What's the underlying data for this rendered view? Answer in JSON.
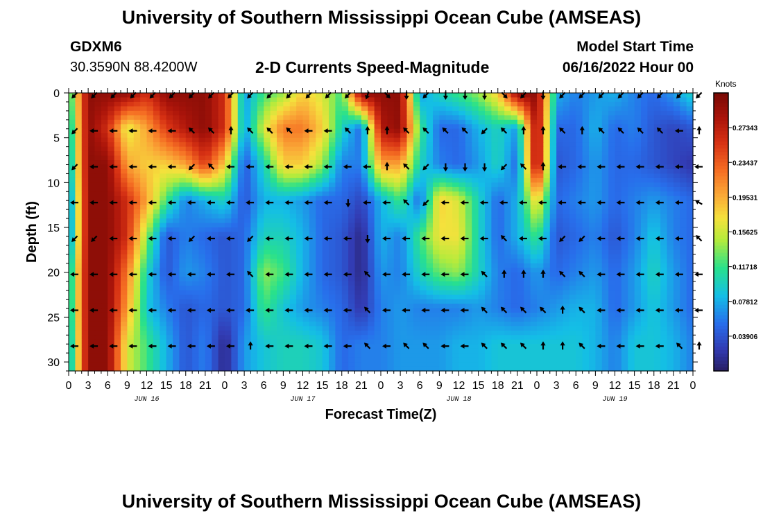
{
  "title": "University of Southern Mississippi Ocean Cube (AMSEAS)",
  "footer_title": "University of Southern Mississippi Ocean Cube (AMSEAS)",
  "station": {
    "id": "GDXM6",
    "coords": "30.3590N  88.4200W"
  },
  "chart_title": "2-D Currents Speed-Magnitude",
  "model_start": {
    "label": "Model Start Time",
    "value": "06/16/2022 Hour 00"
  },
  "chart_data": {
    "type": "heatmap",
    "title": "2-D Currents Speed-Magnitude",
    "xlabel": "Forecast Time(Z)",
    "ylabel": "Depth (ft)",
    "x_range_hours": [
      0,
      96
    ],
    "ylim": [
      0,
      31
    ],
    "y_reversed": true,
    "y_ticks": [
      0,
      5,
      10,
      15,
      20,
      25,
      30
    ],
    "x_tick_labels": [
      "0",
      "3",
      "6",
      "9",
      "12",
      "15",
      "18",
      "21",
      "0",
      "3",
      "6",
      "9",
      "12",
      "15",
      "18",
      "21",
      "0",
      "3",
      "6",
      "9",
      "12",
      "15",
      "18",
      "21",
      "0",
      "3",
      "6",
      "9",
      "12",
      "15",
      "18",
      "21",
      "0"
    ],
    "date_labels": [
      {
        "label": "JUN 16",
        "hour": 12
      },
      {
        "label": "JUN 17",
        "hour": 36
      },
      {
        "label": "JUN 18",
        "hour": 60
      },
      {
        "label": "JUN 19",
        "hour": 84
      }
    ],
    "colorbar": {
      "unit": "Knots",
      "min": 0.0,
      "max": 0.3125,
      "ticks": [
        "0.27343",
        "0.23437",
        "0.19531",
        "0.15625",
        "0.11718",
        "0.07812",
        "0.03906"
      ],
      "tick_values": [
        0.27343,
        0.23437,
        0.19531,
        0.15625,
        0.11718,
        0.07812,
        0.03906
      ]
    },
    "depths_ft": [
      0,
      4,
      8,
      12,
      16,
      20,
      24,
      28
    ],
    "times_h": [
      0,
      3,
      6,
      9,
      12,
      15,
      18,
      21,
      24,
      27,
      30,
      33,
      36,
      39,
      42,
      45,
      48,
      51,
      54,
      57,
      60,
      63,
      66,
      69,
      72,
      75,
      78,
      81,
      84,
      87,
      90,
      93,
      96
    ],
    "speed_knots": [
      [
        0.1,
        0.3,
        0.3,
        0.3,
        0.26,
        0.3,
        0.3,
        0.3,
        0.26,
        0.07,
        0.12,
        0.14,
        0.18,
        0.16,
        0.12,
        0.3,
        0.3,
        0.3,
        0.07,
        0.1,
        0.12,
        0.14,
        0.18,
        0.3,
        0.3,
        0.08,
        0.06,
        0.07,
        0.08,
        0.06,
        0.05,
        0.07,
        0.1
      ],
      [
        0.08,
        0.3,
        0.26,
        0.16,
        0.2,
        0.25,
        0.28,
        0.3,
        0.26,
        0.07,
        0.16,
        0.22,
        0.22,
        0.18,
        0.1,
        0.05,
        0.28,
        0.3,
        0.12,
        0.05,
        0.05,
        0.08,
        0.1,
        0.07,
        0.3,
        0.05,
        0.05,
        0.08,
        0.05,
        0.06,
        0.04,
        0.03,
        0.04
      ],
      [
        0.07,
        0.3,
        0.3,
        0.2,
        0.18,
        0.18,
        0.2,
        0.25,
        0.18,
        0.04,
        0.1,
        0.18,
        0.18,
        0.14,
        0.06,
        0.06,
        0.2,
        0.2,
        0.1,
        0.06,
        0.05,
        0.07,
        0.1,
        0.05,
        0.3,
        0.04,
        0.05,
        0.07,
        0.05,
        0.05,
        0.04,
        0.03,
        0.02
      ],
      [
        0.05,
        0.3,
        0.3,
        0.26,
        0.2,
        0.12,
        0.06,
        0.08,
        0.1,
        0.04,
        0.08,
        0.08,
        0.07,
        0.05,
        0.05,
        0.03,
        0.08,
        0.12,
        0.05,
        0.18,
        0.16,
        0.1,
        0.05,
        0.08,
        0.18,
        0.05,
        0.06,
        0.07,
        0.05,
        0.06,
        0.07,
        0.06,
        0.05
      ],
      [
        0.05,
        0.3,
        0.3,
        0.26,
        0.14,
        0.04,
        0.06,
        0.05,
        0.04,
        0.05,
        0.1,
        0.1,
        0.08,
        0.05,
        0.04,
        0.01,
        0.08,
        0.06,
        0.12,
        0.17,
        0.17,
        0.1,
        0.05,
        0.08,
        0.12,
        0.04,
        0.05,
        0.06,
        0.04,
        0.06,
        0.09,
        0.06,
        0.05
      ],
      [
        0.08,
        0.3,
        0.3,
        0.22,
        0.1,
        0.04,
        0.07,
        0.06,
        0.04,
        0.05,
        0.14,
        0.12,
        0.08,
        0.05,
        0.04,
        0.01,
        0.07,
        0.06,
        0.1,
        0.13,
        0.14,
        0.1,
        0.06,
        0.05,
        0.07,
        0.05,
        0.06,
        0.07,
        0.05,
        0.07,
        0.1,
        0.07,
        0.05
      ],
      [
        0.08,
        0.3,
        0.3,
        0.2,
        0.09,
        0.06,
        0.04,
        0.05,
        0.04,
        0.05,
        0.12,
        0.09,
        0.07,
        0.06,
        0.05,
        0.02,
        0.06,
        0.07,
        0.06,
        0.06,
        0.06,
        0.07,
        0.06,
        0.05,
        0.06,
        0.07,
        0.08,
        0.08,
        0.05,
        0.07,
        0.09,
        0.07,
        0.05
      ],
      [
        0.07,
        0.3,
        0.3,
        0.16,
        0.12,
        0.08,
        0.04,
        0.06,
        0.01,
        0.07,
        0.09,
        0.1,
        0.1,
        0.09,
        0.05,
        0.06,
        0.06,
        0.07,
        0.07,
        0.07,
        0.08,
        0.08,
        0.09,
        0.09,
        0.09,
        0.09,
        0.09,
        0.08,
        0.06,
        0.09,
        0.09,
        0.08,
        0.06
      ]
    ],
    "current_direction_deg": [
      [
        225,
        225,
        225,
        225,
        225,
        225,
        225,
        225,
        225,
        225,
        225,
        225,
        225,
        225,
        225,
        200,
        135,
        180,
        225,
        180,
        180,
        180,
        135,
        225,
        180,
        225,
        225,
        225,
        225,
        225,
        225,
        225,
        225
      ],
      [
        225,
        270,
        270,
        270,
        270,
        270,
        315,
        315,
        0,
        315,
        315,
        315,
        270,
        270,
        315,
        0,
        0,
        315,
        315,
        315,
        315,
        225,
        315,
        0,
        0,
        315,
        0,
        315,
        315,
        315,
        315,
        270,
        0
      ],
      [
        225,
        270,
        270,
        270,
        270,
        270,
        225,
        315,
        270,
        270,
        270,
        270,
        270,
        270,
        270,
        270,
        0,
        315,
        225,
        180,
        180,
        180,
        225,
        315,
        0,
        270,
        270,
        270,
        270,
        270,
        270,
        270,
        270
      ],
      [
        270,
        270,
        270,
        270,
        270,
        270,
        270,
        270,
        270,
        270,
        270,
        270,
        270,
        270,
        180,
        270,
        270,
        315,
        225,
        270,
        270,
        270,
        270,
        270,
        270,
        270,
        270,
        270,
        270,
        270,
        270,
        270,
        300
      ],
      [
        225,
        225,
        270,
        270,
        270,
        270,
        225,
        270,
        270,
        225,
        270,
        270,
        270,
        270,
        270,
        180,
        270,
        270,
        270,
        270,
        270,
        270,
        315,
        270,
        270,
        225,
        225,
        270,
        270,
        270,
        270,
        270,
        315
      ],
      [
        270,
        270,
        270,
        270,
        270,
        270,
        270,
        270,
        270,
        315,
        270,
        270,
        270,
        270,
        270,
        315,
        270,
        270,
        270,
        270,
        270,
        315,
        0,
        0,
        0,
        315,
        315,
        270,
        270,
        270,
        270,
        270,
        270
      ],
      [
        270,
        270,
        270,
        270,
        270,
        270,
        270,
        270,
        270,
        270,
        270,
        270,
        270,
        270,
        270,
        315,
        270,
        270,
        270,
        270,
        270,
        315,
        315,
        315,
        315,
        0,
        315,
        270,
        270,
        270,
        270,
        270,
        270
      ],
      [
        270,
        270,
        270,
        270,
        270,
        270,
        270,
        270,
        270,
        0,
        270,
        270,
        270,
        270,
        270,
        315,
        270,
        315,
        315,
        270,
        270,
        315,
        315,
        315,
        0,
        0,
        315,
        270,
        270,
        270,
        270,
        315,
        0
      ]
    ]
  }
}
